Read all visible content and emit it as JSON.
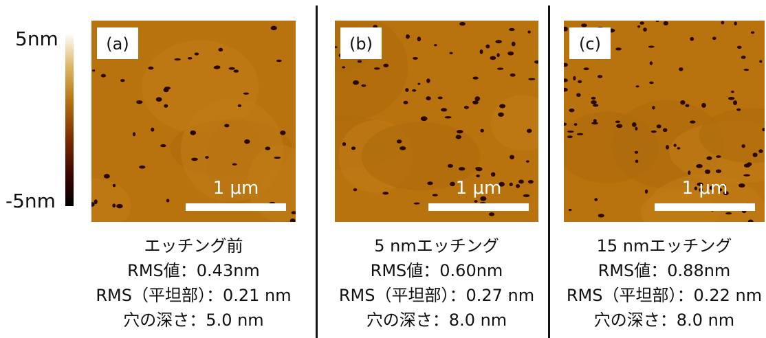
{
  "colorbar": {
    "max": "5nm",
    "min": "-5nm"
  },
  "panels": [
    {
      "label": "(a)",
      "scale_bar": "1 μm",
      "caption": [
        "エッチング前",
        "RMS値：0.43nm",
        "RMS（平坦部）：0.21 nm",
        "穴の深さ：5.0 nm"
      ]
    },
    {
      "label": "(b)",
      "scale_bar": "1 μm",
      "caption": [
        "5 nmエッチング",
        "RMS値：0.60nm",
        "RMS（平坦部）：0.27 nm",
        "穴の深さ：8.0 nm"
      ]
    },
    {
      "label": "(c)",
      "scale_bar": "1 μm",
      "caption": [
        "15 nmエッチング",
        "RMS値：0.88nm",
        "RMS（平坦部）：0.22 nm",
        "穴の深さ：8.0 nm"
      ]
    }
  ]
}
